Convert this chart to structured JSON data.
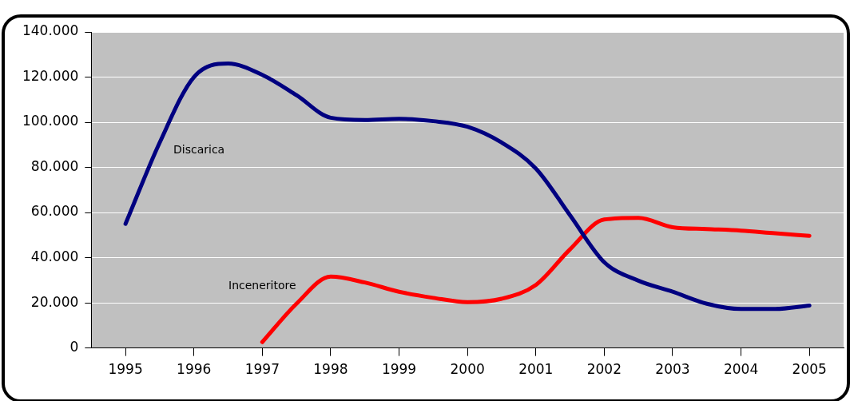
{
  "chart_data": {
    "type": "line",
    "x": [
      1995,
      1995.5,
      1996,
      1996.5,
      1997,
      1997.5,
      1998,
      1998.5,
      1999,
      1999.5,
      2000,
      2000.5,
      2001,
      2001.5,
      2002,
      2002.5,
      2003,
      2003.5,
      2004,
      2004.5,
      2005
    ],
    "series": [
      {
        "name": "Discarica",
        "color": "#000080",
        "values": [
          55000,
          91000,
          120000,
          126000,
          121000,
          112000,
          102000,
          101000,
          101500,
          100500,
          98000,
          91000,
          79500,
          58800,
          38000,
          29800,
          24900,
          19600,
          17300,
          17300,
          18800
        ]
      },
      {
        "name": "Inceneritore",
        "color": "#ff0000",
        "values": [
          null,
          null,
          null,
          null,
          2600,
          19600,
          31600,
          29000,
          24900,
          22200,
          20300,
          21800,
          27900,
          43700,
          56900,
          57600,
          53500,
          52700,
          52000,
          50800,
          49700
        ]
      }
    ],
    "xlim": [
      1994.5,
      2005.5
    ],
    "xticks": [
      1995,
      1996,
      1997,
      1998,
      1999,
      2000,
      2001,
      2002,
      2003,
      2004,
      2005
    ],
    "ylim": [
      0,
      140000
    ],
    "yticks": [
      {
        "value": 0,
        "label": "0"
      },
      {
        "value": 20000,
        "label": "20.000"
      },
      {
        "value": 40000,
        "label": "40.000"
      },
      {
        "value": 60000,
        "label": "60.000"
      },
      {
        "value": 80000,
        "label": "80.000"
      },
      {
        "value": 100000,
        "label": "100.000"
      },
      {
        "value": 120000,
        "label": "120.000"
      },
      {
        "value": 140000,
        "label": "140.000"
      }
    ],
    "grid": "y",
    "legend": false,
    "marker": "none",
    "line_style": "solid"
  }
}
